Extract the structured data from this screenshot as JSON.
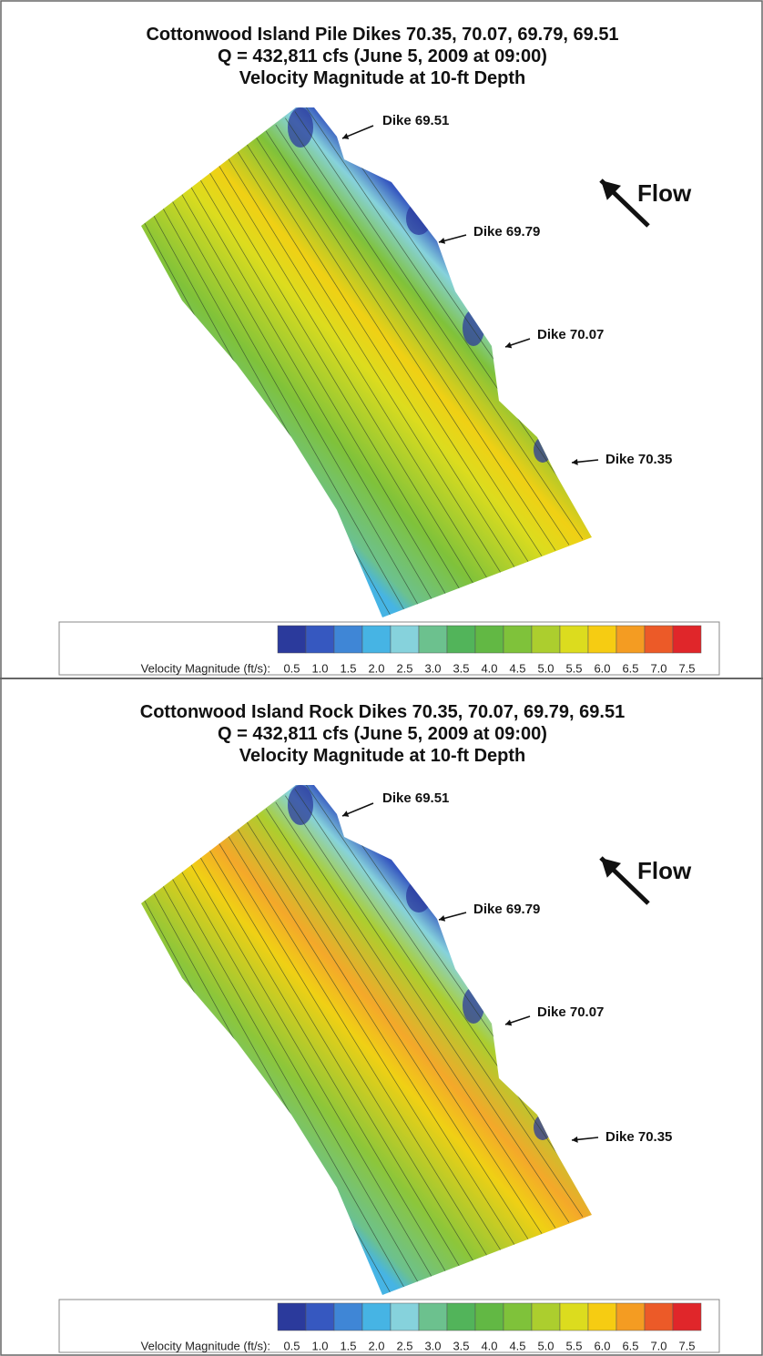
{
  "panels": [
    {
      "title": [
        "Cottonwood Island Pile Dikes 70.35, 70.07, 69.79, 69.51",
        "Q = 432,811 cfs (June 5, 2009 at 09:00)",
        "Velocity Magnitude at 10-ft Depth"
      ],
      "annotations": [
        "Dike 69.51",
        "Dike 69.79",
        "Dike 70.07",
        "Dike 70.35"
      ],
      "flow_label": "Flow",
      "legend": {
        "label": "Velocity Magnitude (ft/s):",
        "ticks": [
          0.5,
          {
            "value": 1,
            "label": "1.0"
          },
          1.5,
          {
            "value": 2,
            "label": "2.0"
          },
          2.5,
          {
            "value": 3,
            "label": "3.0"
          },
          3.5,
          {
            "value": 4,
            "label": "4.0"
          },
          4.5,
          {
            "value": 5,
            "label": "5.0"
          },
          5.5,
          {
            "value": 6,
            "label": "6.0"
          },
          6.5,
          {
            "value": 7,
            "label": "7.0"
          },
          7.5
        ],
        "colors": [
          "#2b3a9c",
          "#3658c0",
          "#3f86d6",
          "#46b4e4",
          "#86d2dc",
          "#6cc18e",
          "#52b45a",
          "#62b844",
          "#7fc23a",
          "#acce2e",
          "#dcdc1e",
          "#f6cc12",
          "#f49c22",
          "#ec5a28",
          "#e0262a"
        ]
      }
    },
    {
      "title": [
        "Cottonwood Island Rock Dikes 70.35, 70.07, 69.79, 69.51",
        "Q = 432,811 cfs (June 5, 2009 at 09:00)",
        "Velocity Magnitude at 10-ft Depth"
      ],
      "annotations": [
        "Dike 69.51",
        "Dike 69.79",
        "Dike 70.07",
        "Dike 70.35"
      ],
      "flow_label": "Flow",
      "legend": {
        "label": "Velocity Magnitude (ft/s):",
        "ticks": [
          0.5,
          {
            "value": 1,
            "label": "1.0"
          },
          1.5,
          {
            "value": 2,
            "label": "2.0"
          },
          2.5,
          {
            "value": 3,
            "label": "3.0"
          },
          3.5,
          {
            "value": 4,
            "label": "4.0"
          },
          4.5,
          {
            "value": 5,
            "label": "5.0"
          },
          5.5,
          {
            "value": 6,
            "label": "6.0"
          },
          6.5,
          {
            "value": 7,
            "label": "7.0"
          },
          7.5
        ],
        "colors": [
          "#2b3a9c",
          "#3658c0",
          "#3f86d6",
          "#46b4e4",
          "#86d2dc",
          "#6cc18e",
          "#52b45a",
          "#62b844",
          "#7fc23a",
          "#acce2e",
          "#dcdc1e",
          "#f6cc12",
          "#f49c22",
          "#ec5a28",
          "#e0262a"
        ]
      }
    }
  ]
}
